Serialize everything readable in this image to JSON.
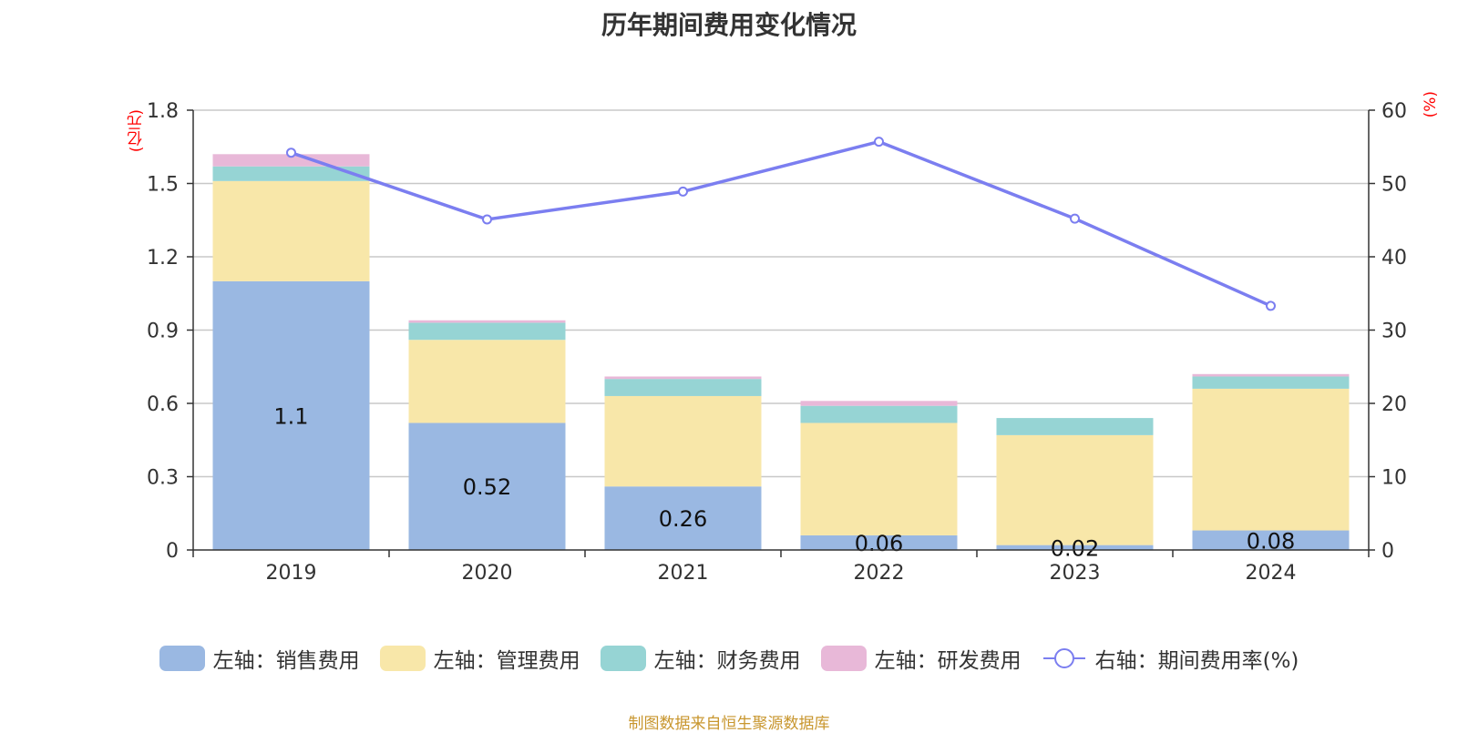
{
  "chart_data": {
    "type": "bar",
    "title": "历年期间费用变化情况",
    "categories": [
      "2019",
      "2020",
      "2021",
      "2022",
      "2023",
      "2024"
    ],
    "left_axis": {
      "unit": "(亿元)",
      "ylim": [
        0,
        1.8
      ],
      "ticks": [
        "0",
        "0.3",
        "0.6",
        "0.9",
        "1.2",
        "1.5",
        "1.8"
      ]
    },
    "right_axis": {
      "unit": "(%)",
      "ylim": [
        0,
        60
      ],
      "ticks": [
        "0",
        "10",
        "20",
        "30",
        "40",
        "50",
        "60"
      ]
    },
    "series": [
      {
        "name": "左轴：销售费用",
        "kind": "bar",
        "color": "#9ab8e2",
        "values": [
          1.1,
          0.52,
          0.26,
          0.06,
          0.02,
          0.08
        ],
        "labels": [
          "1.1",
          "0.52",
          "0.26",
          "0.06",
          "0.02",
          "0.08"
        ]
      },
      {
        "name": "左轴：管理费用",
        "kind": "bar",
        "color": "#f8e7a9",
        "values": [
          0.41,
          0.34,
          0.37,
          0.46,
          0.45,
          0.58
        ]
      },
      {
        "name": "左轴：财务费用",
        "kind": "bar",
        "color": "#96d4d4",
        "values": [
          0.06,
          0.07,
          0.07,
          0.07,
          0.07,
          0.05
        ]
      },
      {
        "name": "左轴：研发费用",
        "kind": "bar",
        "color": "#e8b8d8",
        "values": [
          0.05,
          0.01,
          0.01,
          0.02,
          0.0,
          0.01
        ]
      },
      {
        "name": "右轴：期间费用率(%)",
        "kind": "line",
        "color": "#7b7ef0",
        "values": [
          54.2,
          45.1,
          48.9,
          55.7,
          45.2,
          33.3
        ]
      }
    ],
    "grid": true,
    "legend_position": "bottom"
  },
  "source": "制图数据来自恒生聚源数据库"
}
